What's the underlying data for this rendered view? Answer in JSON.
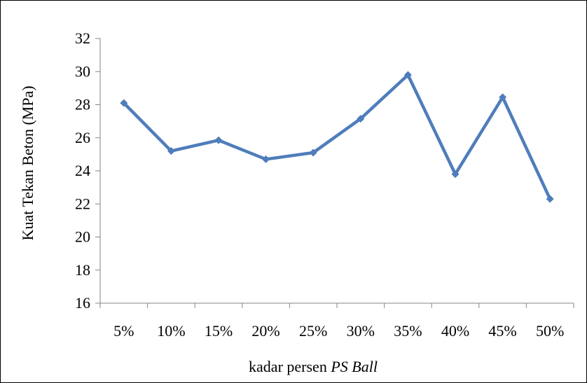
{
  "chart_data": {
    "type": "line",
    "categories": [
      "5%",
      "10%",
      "15%",
      "20%",
      "25%",
      "30%",
      "35%",
      "40%",
      "45%",
      "50%"
    ],
    "series": [
      {
        "values": [
          28.1,
          25.2,
          25.85,
          24.7,
          25.1,
          27.15,
          29.8,
          23.8,
          28.45,
          22.3
        ],
        "color": "#4F7DBB"
      }
    ],
    "ylim": [
      16,
      32
    ],
    "yticks": [
      "16",
      "18",
      "20",
      "22",
      "24",
      "26",
      "28",
      "30",
      "32"
    ],
    "ylabel": "Kuat Tekan Beton (MPa)",
    "xlabel_plain": "kadar persen ",
    "xlabel_italic": "PS Ball",
    "grid": false,
    "legend": "none"
  }
}
